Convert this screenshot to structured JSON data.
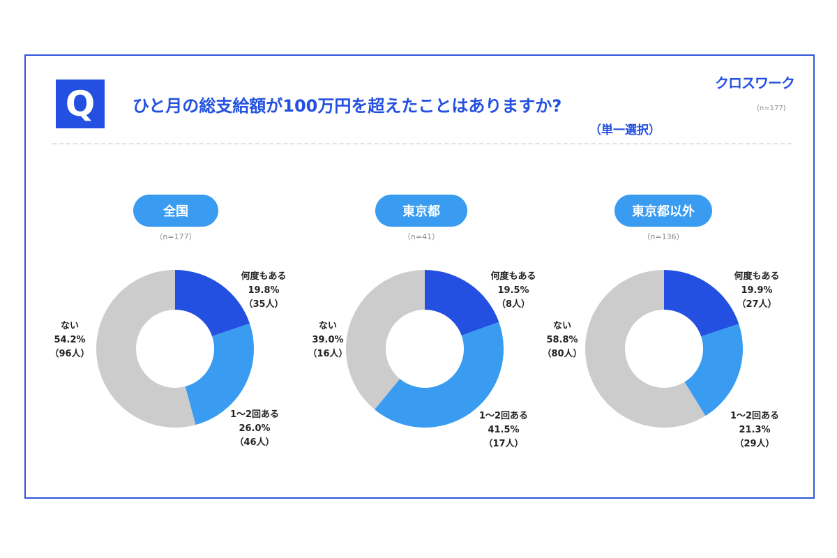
{
  "header": {
    "q_mark": "Q",
    "title": "ひと月の総支給額が100万円を超えたことはありますか?",
    "subtitle": "（単一選択）",
    "logo": "クロスワーク",
    "n_total": "(n=177)"
  },
  "colors": {
    "frequent": "#2350e0",
    "once_twice": "#3a9cf0",
    "never": "#cccccc",
    "accent": "#2350e0"
  },
  "chart_data": [
    {
      "type": "pie",
      "donut": true,
      "title": "全国",
      "n": "（n=177）",
      "slices": [
        {
          "label": "何度もある",
          "value": 19.8,
          "pct": "19.8%",
          "count": "（35人）"
        },
        {
          "label": "1～2回ある",
          "value": 26.0,
          "pct": "26.0%",
          "count": "（46人）"
        },
        {
          "label": "ない",
          "value": 54.2,
          "pct": "54.2%",
          "count": "（96人）"
        }
      ]
    },
    {
      "type": "pie",
      "donut": true,
      "title": "東京都",
      "n": "（n=41）",
      "slices": [
        {
          "label": "何度もある",
          "value": 19.5,
          "pct": "19.5%",
          "count": "（8人）"
        },
        {
          "label": "1～2回ある",
          "value": 41.5,
          "pct": "41.5%",
          "count": "（17人）"
        },
        {
          "label": "ない",
          "value": 39.0,
          "pct": "39.0%",
          "count": "（16人）"
        }
      ]
    },
    {
      "type": "pie",
      "donut": true,
      "title": "東京都以外",
      "n": "（n=136）",
      "slices": [
        {
          "label": "何度もある",
          "value": 19.9,
          "pct": "19.9%",
          "count": "（27人）"
        },
        {
          "label": "1～2回ある",
          "value": 21.3,
          "pct": "21.3%",
          "count": "（29人）"
        },
        {
          "label": "ない",
          "value": 58.8,
          "pct": "58.8%",
          "count": "（80人）"
        }
      ]
    }
  ]
}
